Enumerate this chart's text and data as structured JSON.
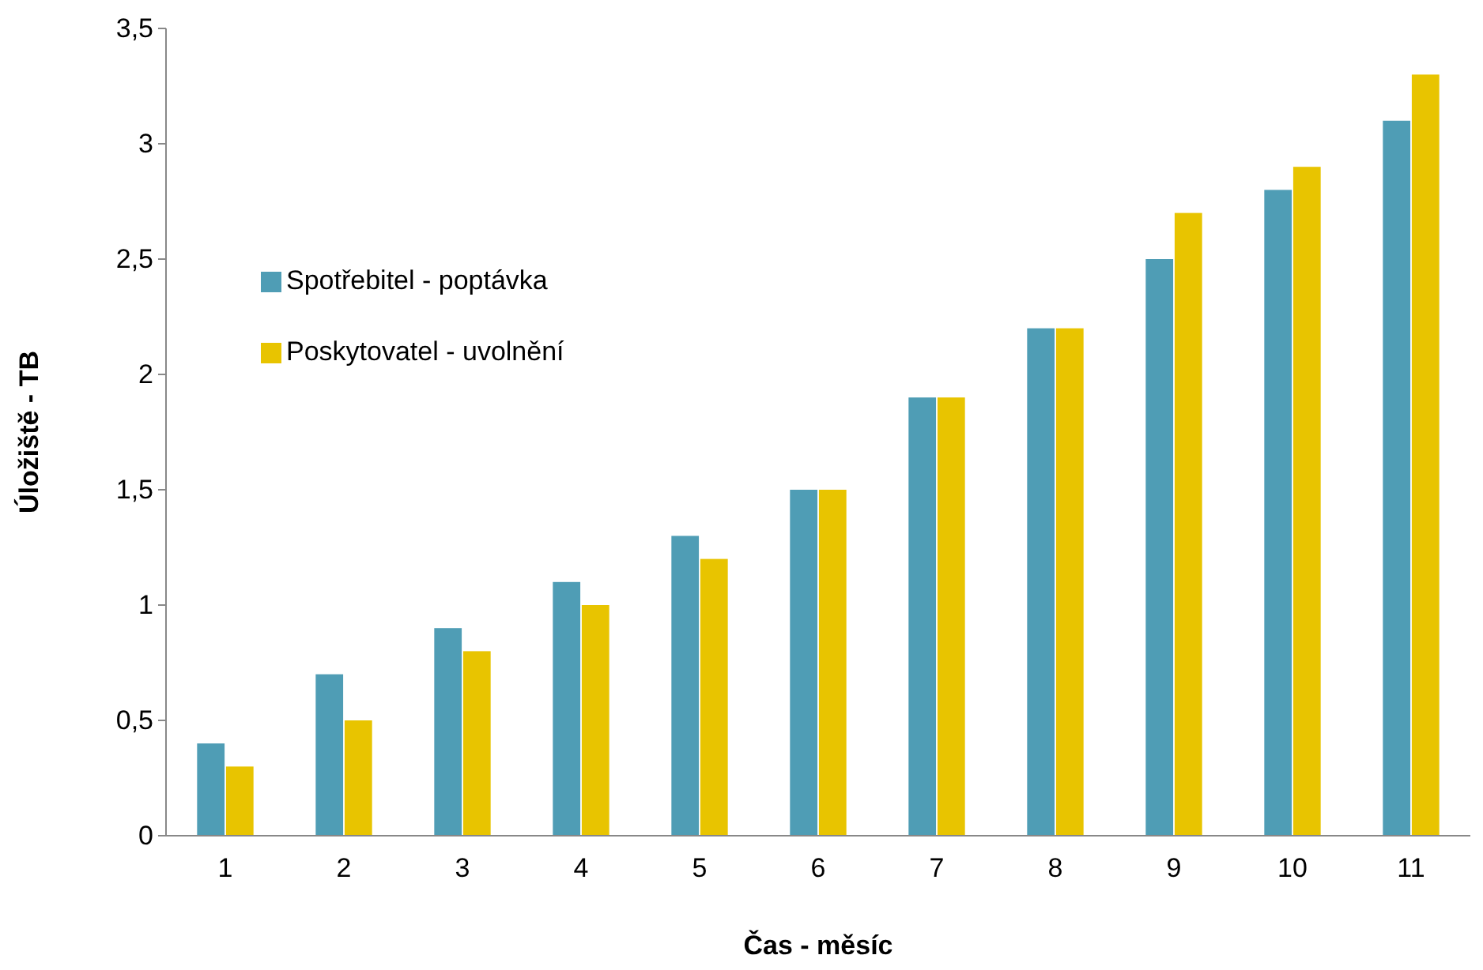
{
  "chart_data": {
    "type": "bar",
    "xlabel": "Čas - měsíc",
    "ylabel": "Úložiště - TB",
    "categories": [
      "1",
      "2",
      "3",
      "4",
      "5",
      "6",
      "7",
      "8",
      "9",
      "10",
      "11"
    ],
    "series": [
      {
        "name": "Spotřebitel - poptávka",
        "color": "#4f9db5",
        "values": [
          0.4,
          0.7,
          0.9,
          1.1,
          1.3,
          1.5,
          1.9,
          2.2,
          2.5,
          2.8,
          3.1
        ]
      },
      {
        "name": "Poskytovatel - uvolnění",
        "color": "#e8c400",
        "values": [
          0.3,
          0.5,
          0.8,
          1.0,
          1.2,
          1.5,
          1.9,
          2.2,
          2.7,
          2.9,
          3.3
        ]
      }
    ],
    "ylim": [
      0,
      3.5
    ],
    "yticks": [
      0,
      {
        "value": 0.5,
        "label": "0,5"
      },
      1,
      {
        "value": 1.5,
        "label": "1,5"
      },
      2,
      {
        "value": 2.5,
        "label": "2,5"
      },
      3,
      {
        "value": 3.5,
        "label": "3,5"
      }
    ],
    "legend": "left"
  }
}
